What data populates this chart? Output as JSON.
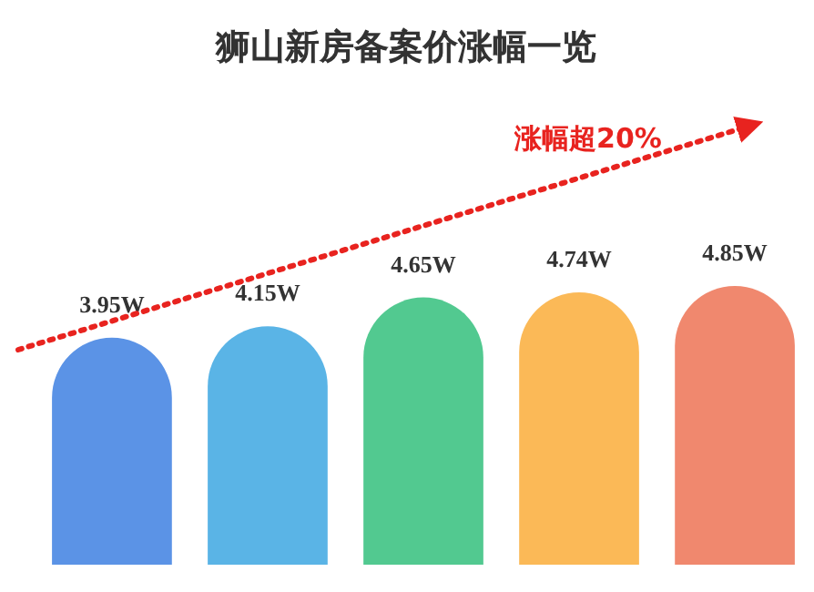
{
  "chart_data": {
    "type": "bar",
    "title": "狮山新房备案价涨幅一览",
    "categories": [
      null,
      null,
      null,
      null,
      null
    ],
    "values": [
      3.95,
      4.15,
      4.65,
      4.74,
      4.85
    ],
    "colors": [
      "#5b93e6",
      "#5ab4e6",
      "#52c990",
      "#fbb957",
      "#f0886e"
    ],
    "value_labels": [
      "3.95W",
      "4.15W",
      "4.65W",
      "4.74W",
      "4.85W"
    ],
    "annotations": [
      "涨幅超20%"
    ]
  }
}
